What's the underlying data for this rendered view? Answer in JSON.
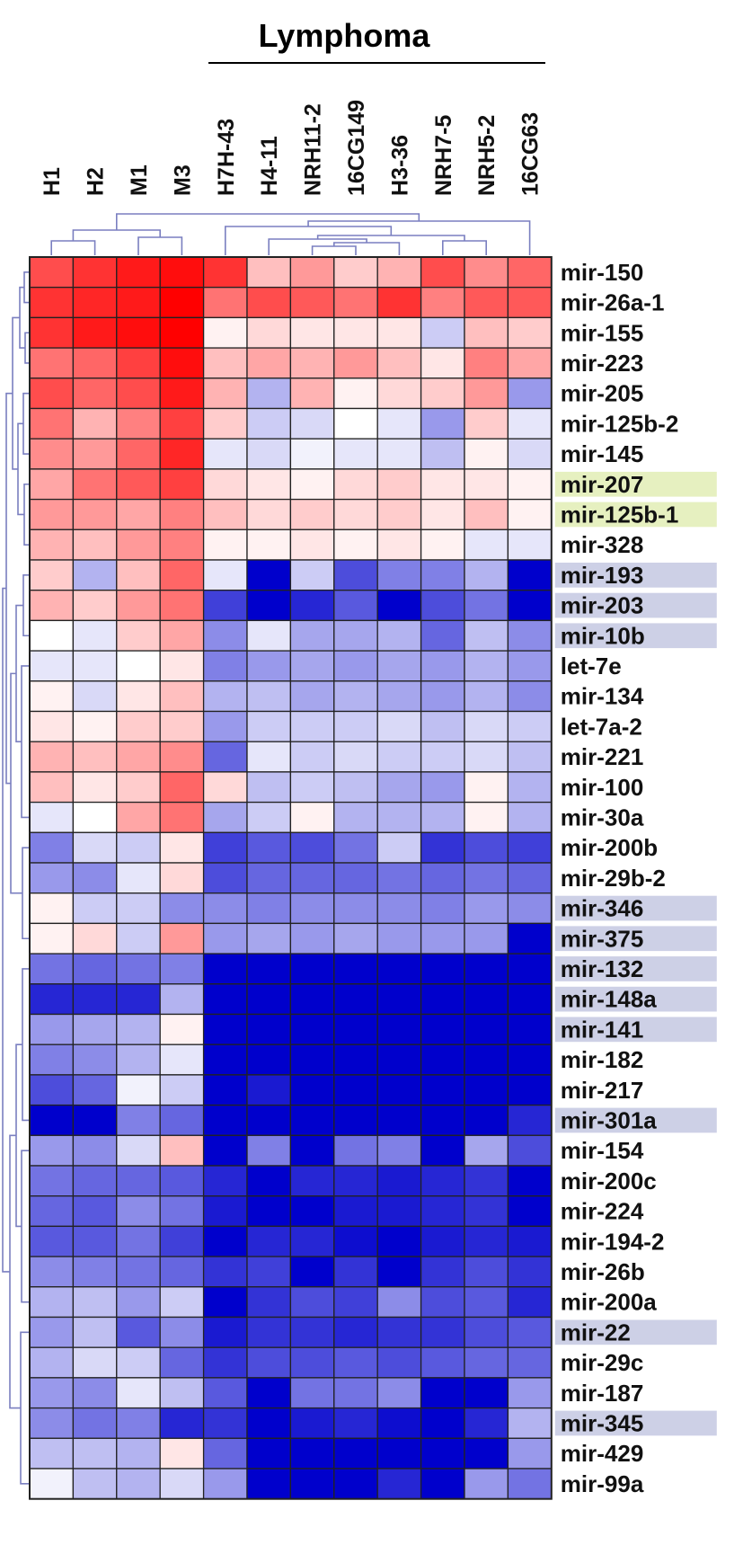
{
  "chart_data": {
    "type": "heatmap",
    "title": "",
    "group_label": "Lymphoma",
    "columns": [
      "H1",
      "H2",
      "M1",
      "M3",
      "H7H-43",
      "H4-11",
      "NRH11-2",
      "16CG149",
      "H3-36",
      "NRH7-5",
      "NRH5-2",
      "16CG63"
    ],
    "lymphoma_columns": [
      "H7H-43",
      "H4-11",
      "NRH11-2",
      "16CG149",
      "H3-36",
      "NRH7-5",
      "NRH5-2",
      "16CG63"
    ],
    "rows": [
      {
        "label": "mir-150",
        "highlight": "none"
      },
      {
        "label": "mir-26a-1",
        "highlight": "none"
      },
      {
        "label": "mir-155",
        "highlight": "none"
      },
      {
        "label": "mir-223",
        "highlight": "none"
      },
      {
        "label": "mir-205",
        "highlight": "none"
      },
      {
        "label": "mir-125b-2",
        "highlight": "none"
      },
      {
        "label": "mir-145",
        "highlight": "none"
      },
      {
        "label": "mir-207",
        "highlight": "green"
      },
      {
        "label": "mir-125b-1",
        "highlight": "green"
      },
      {
        "label": "mir-328",
        "highlight": "none"
      },
      {
        "label": "mir-193",
        "highlight": "blue"
      },
      {
        "label": "mir-203",
        "highlight": "blue"
      },
      {
        "label": "mir-10b",
        "highlight": "blue"
      },
      {
        "label": "let-7e",
        "highlight": "none"
      },
      {
        "label": "mir-134",
        "highlight": "none"
      },
      {
        "label": "let-7a-2",
        "highlight": "none"
      },
      {
        "label": "mir-221",
        "highlight": "none"
      },
      {
        "label": "mir-100",
        "highlight": "none"
      },
      {
        "label": "mir-30a",
        "highlight": "none"
      },
      {
        "label": "mir-200b",
        "highlight": "none"
      },
      {
        "label": "mir-29b-2",
        "highlight": "none"
      },
      {
        "label": "mir-346",
        "highlight": "blue"
      },
      {
        "label": "mir-375",
        "highlight": "blue"
      },
      {
        "label": "mir-132",
        "highlight": "blue"
      },
      {
        "label": "mir-148a",
        "highlight": "blue"
      },
      {
        "label": "mir-141",
        "highlight": "blue"
      },
      {
        "label": "mir-182",
        "highlight": "none"
      },
      {
        "label": "mir-217",
        "highlight": "none"
      },
      {
        "label": "mir-301a",
        "highlight": "blue"
      },
      {
        "label": "mir-154",
        "highlight": "none"
      },
      {
        "label": "mir-200c",
        "highlight": "none"
      },
      {
        "label": "mir-224",
        "highlight": "none"
      },
      {
        "label": "mir-194-2",
        "highlight": "none"
      },
      {
        "label": "mir-26b",
        "highlight": "none"
      },
      {
        "label": "mir-200a",
        "highlight": "none"
      },
      {
        "label": "mir-22",
        "highlight": "blue"
      },
      {
        "label": "mir-29c",
        "highlight": "none"
      },
      {
        "label": "mir-187",
        "highlight": "none"
      },
      {
        "label": "mir-345",
        "highlight": "blue"
      },
      {
        "label": "mir-429",
        "highlight": "none"
      },
      {
        "label": "mir-99a",
        "highlight": "none"
      }
    ],
    "scale": "diverging blue(-1) - white(0) - red(+1)",
    "values": [
      [
        0.7,
        0.8,
        0.9,
        0.95,
        0.8,
        0.25,
        0.4,
        0.2,
        0.3,
        0.7,
        0.45,
        0.6
      ],
      [
        0.8,
        0.85,
        0.9,
        1.0,
        0.55,
        0.7,
        0.65,
        0.55,
        0.8,
        0.5,
        0.65,
        0.65
      ],
      [
        0.8,
        0.9,
        0.95,
        1.0,
        0.05,
        0.15,
        0.1,
        0.1,
        0.1,
        -0.2,
        0.25,
        0.2
      ],
      [
        0.55,
        0.6,
        0.75,
        0.95,
        0.25,
        0.35,
        0.3,
        0.4,
        0.25,
        0.1,
        0.5,
        0.35
      ],
      [
        0.7,
        0.6,
        0.7,
        0.9,
        0.3,
        -0.3,
        0.3,
        0.05,
        0.15,
        0.2,
        0.4,
        -0.4
      ],
      [
        0.55,
        0.3,
        0.5,
        0.75,
        0.2,
        -0.2,
        -0.15,
        0.0,
        -0.1,
        -0.4,
        0.2,
        -0.1
      ],
      [
        0.45,
        0.4,
        0.6,
        0.85,
        -0.1,
        -0.15,
        -0.05,
        -0.1,
        -0.1,
        -0.25,
        0.05,
        -0.15
      ],
      [
        0.35,
        0.55,
        0.65,
        0.75,
        0.15,
        0.1,
        0.05,
        0.15,
        0.2,
        0.1,
        0.1,
        0.05
      ],
      [
        0.4,
        0.4,
        0.35,
        0.5,
        0.25,
        0.15,
        0.2,
        0.15,
        0.2,
        0.1,
        0.25,
        0.05
      ],
      [
        0.3,
        0.25,
        0.4,
        0.5,
        0.05,
        0.05,
        0.1,
        0.05,
        0.1,
        0.05,
        -0.1,
        -0.1
      ],
      [
        0.2,
        -0.3,
        0.25,
        0.6,
        -0.1,
        -1.0,
        -0.2,
        -0.7,
        -0.5,
        -0.5,
        -0.3,
        -1.0
      ],
      [
        0.3,
        0.2,
        0.4,
        0.55,
        -0.75,
        -1.0,
        -0.85,
        -0.65,
        -1.0,
        -0.7,
        -0.55,
        -1.0
      ],
      [
        0.0,
        -0.1,
        0.2,
        0.35,
        -0.45,
        -0.1,
        -0.35,
        -0.35,
        -0.3,
        -0.6,
        -0.25,
        -0.45
      ],
      [
        -0.1,
        -0.1,
        0.0,
        0.1,
        -0.5,
        -0.4,
        -0.35,
        -0.4,
        -0.35,
        -0.4,
        -0.3,
        -0.4
      ],
      [
        0.05,
        -0.15,
        0.1,
        0.25,
        -0.3,
        -0.25,
        -0.35,
        -0.3,
        -0.35,
        -0.4,
        -0.3,
        -0.45
      ],
      [
        0.1,
        0.05,
        0.2,
        0.2,
        -0.4,
        -0.2,
        -0.2,
        -0.2,
        -0.15,
        -0.25,
        -0.15,
        -0.2
      ],
      [
        0.3,
        0.25,
        0.35,
        0.45,
        -0.6,
        -0.1,
        -0.2,
        -0.15,
        -0.2,
        -0.2,
        -0.15,
        -0.25
      ],
      [
        0.25,
        0.1,
        0.2,
        0.6,
        0.15,
        -0.25,
        -0.2,
        -0.25,
        -0.35,
        -0.4,
        0.05,
        -0.3
      ],
      [
        -0.1,
        0.0,
        0.35,
        0.55,
        -0.35,
        -0.2,
        0.05,
        -0.3,
        -0.3,
        -0.3,
        0.05,
        -0.3
      ],
      [
        -0.5,
        -0.15,
        -0.2,
        0.1,
        -0.75,
        -0.65,
        -0.7,
        -0.55,
        -0.2,
        -0.8,
        -0.7,
        -0.75
      ],
      [
        -0.4,
        -0.45,
        -0.1,
        0.15,
        -0.7,
        -0.6,
        -0.6,
        -0.6,
        -0.55,
        -0.6,
        -0.55,
        -0.6
      ],
      [
        0.05,
        -0.2,
        -0.2,
        -0.45,
        -0.45,
        -0.5,
        -0.45,
        -0.45,
        -0.45,
        -0.5,
        -0.4,
        -0.45
      ],
      [
        0.05,
        0.15,
        -0.2,
        0.4,
        -0.4,
        -0.35,
        -0.4,
        -0.35,
        -0.4,
        -0.4,
        -0.4,
        -1.0
      ],
      [
        -0.55,
        -0.6,
        -0.55,
        -0.5,
        -1.0,
        -1.0,
        -1.0,
        -1.0,
        -1.0,
        -1.0,
        -1.0,
        -1.0
      ],
      [
        -0.85,
        -0.85,
        -0.85,
        -0.3,
        -1.0,
        -1.0,
        -1.0,
        -1.0,
        -1.0,
        -1.0,
        -1.0,
        -1.0
      ],
      [
        -0.4,
        -0.35,
        -0.3,
        0.05,
        -1.0,
        -1.0,
        -1.0,
        -1.0,
        -1.0,
        -1.0,
        -1.0,
        -1.0
      ],
      [
        -0.5,
        -0.45,
        -0.3,
        -0.1,
        -1.0,
        -1.0,
        -1.0,
        -1.0,
        -1.0,
        -1.0,
        -1.0,
        -1.0
      ],
      [
        -0.7,
        -0.6,
        -0.05,
        -0.2,
        -1.0,
        -0.9,
        -1.0,
        -1.0,
        -1.0,
        -1.0,
        -1.0,
        -1.0
      ],
      [
        -1.0,
        -1.0,
        -0.5,
        -0.6,
        -1.0,
        -1.0,
        -1.0,
        -1.0,
        -1.0,
        -1.0,
        -1.0,
        -0.85
      ],
      [
        -0.4,
        -0.45,
        -0.15,
        0.25,
        -1.0,
        -0.5,
        -1.0,
        -0.55,
        -0.5,
        -1.0,
        -0.35,
        -0.7
      ],
      [
        -0.55,
        -0.6,
        -0.6,
        -0.65,
        -0.85,
        -1.0,
        -0.85,
        -0.85,
        -0.9,
        -0.85,
        -0.8,
        -1.0
      ],
      [
        -0.6,
        -0.65,
        -0.45,
        -0.55,
        -0.9,
        -1.0,
        -1.0,
        -0.9,
        -0.9,
        -0.85,
        -0.8,
        -1.0
      ],
      [
        -0.65,
        -0.65,
        -0.55,
        -0.75,
        -1.0,
        -0.85,
        -0.85,
        -0.95,
        -1.0,
        -0.9,
        -0.85,
        -0.9
      ],
      [
        -0.45,
        -0.5,
        -0.55,
        -0.6,
        -0.8,
        -0.75,
        -1.0,
        -0.8,
        -1.0,
        -0.8,
        -0.7,
        -0.8
      ],
      [
        -0.3,
        -0.25,
        -0.4,
        -0.2,
        -1.0,
        -0.8,
        -0.7,
        -0.75,
        -0.45,
        -0.7,
        -0.65,
        -0.85
      ],
      [
        -0.4,
        -0.25,
        -0.65,
        -0.45,
        -0.9,
        -0.8,
        -0.8,
        -0.85,
        -0.8,
        -0.8,
        -0.7,
        -0.65
      ],
      [
        -0.3,
        -0.15,
        -0.2,
        -0.6,
        -0.8,
        -0.7,
        -0.7,
        -0.65,
        -0.7,
        -0.65,
        -0.6,
        -0.6
      ],
      [
        -0.4,
        -0.45,
        -0.1,
        -0.25,
        -0.65,
        -1.0,
        -0.55,
        -0.55,
        -0.45,
        -1.0,
        -1.0,
        -0.4
      ],
      [
        -0.45,
        -0.55,
        -0.5,
        -0.85,
        -0.8,
        -1.0,
        -0.9,
        -0.85,
        -0.95,
        -1.0,
        -0.85,
        -0.3
      ],
      [
        -0.25,
        -0.25,
        -0.3,
        0.1,
        -0.6,
        -1.0,
        -1.0,
        -1.0,
        -1.0,
        -1.0,
        -1.0,
        -0.4
      ],
      [
        -0.05,
        -0.25,
        -0.3,
        -0.15,
        -0.4,
        -1.0,
        -1.0,
        -1.0,
        -0.85,
        -1.0,
        -0.4,
        -0.55
      ]
    ]
  },
  "colors": {
    "high": "#ff0000",
    "mid": "#ffffff",
    "low": "#0000cc",
    "grid": "#222222",
    "dendrogram": "#7a7fc0",
    "highlight_green": "#e6f0c0",
    "highlight_blue": "#cdd0e6"
  }
}
